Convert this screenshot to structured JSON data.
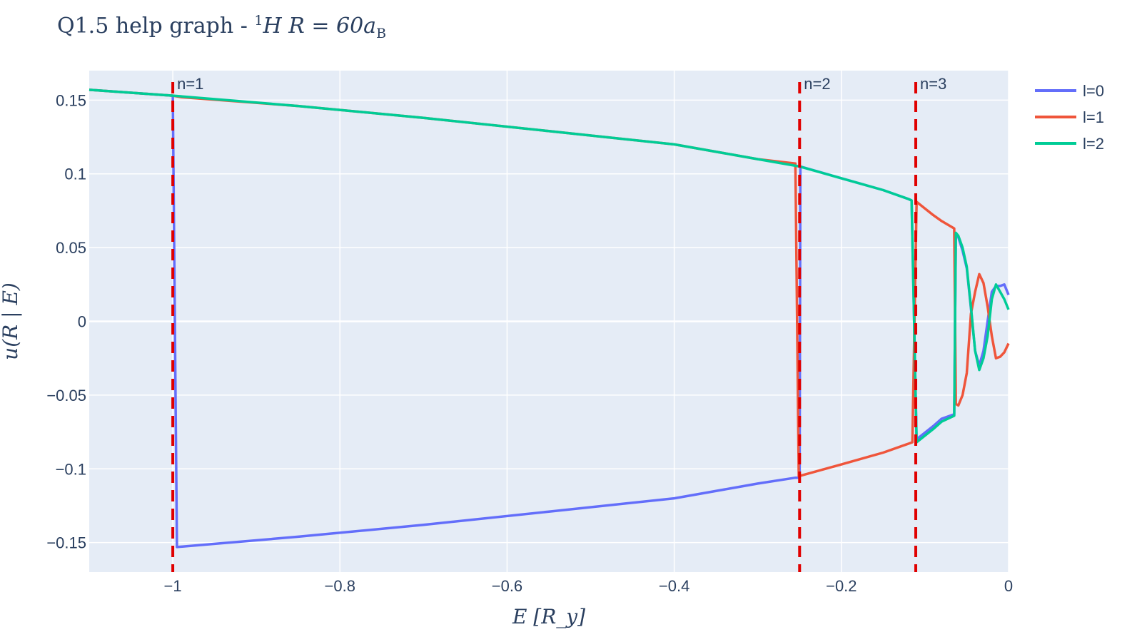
{
  "chart_data": {
    "type": "line",
    "title": {
      "prefix": "Q1.5 help graph - ",
      "sup": "1",
      "formula": "H R = 60a",
      "sub": "B"
    },
    "xlabel": "E [R_y]",
    "ylabel": "u(R | E)",
    "xlim": [
      -1.1,
      0.0
    ],
    "ylim": [
      -0.17,
      0.17
    ],
    "xticks": [
      {
        "value": -1.0,
        "label": "−1"
      },
      {
        "value": -0.8,
        "label": "−0.8"
      },
      {
        "value": -0.6,
        "label": "−0.6"
      },
      {
        "value": -0.4,
        "label": "−0.4"
      },
      {
        "value": -0.2,
        "label": "−0.2"
      },
      {
        "value": 0.0,
        "label": "0"
      }
    ],
    "yticks": [
      {
        "value": 0.15,
        "label": "0.15"
      },
      {
        "value": 0.1,
        "label": "0.1"
      },
      {
        "value": 0.05,
        "label": "0.05"
      },
      {
        "value": 0.0,
        "label": "0"
      },
      {
        "value": -0.05,
        "label": "−0.05"
      },
      {
        "value": -0.1,
        "label": "−0.1"
      },
      {
        "value": -0.15,
        "label": "−0.15"
      }
    ],
    "grid": true,
    "legend_position": "top-right outside",
    "series": [
      {
        "name": "l=0",
        "color": "#636efa",
        "x": [
          -1.1,
          -1.0,
          -0.995,
          -0.85,
          -0.7,
          -0.55,
          -0.4,
          -0.33,
          -0.3,
          -0.255,
          -0.25,
          -0.249,
          -0.2,
          -0.15,
          -0.12,
          -0.116,
          -0.11,
          -0.09,
          -0.08,
          -0.065,
          -0.063,
          -0.06,
          -0.055,
          -0.05,
          -0.045,
          -0.04,
          -0.035,
          -0.03,
          -0.025,
          -0.02,
          -0.015,
          -0.01,
          -0.005,
          0.0
        ],
        "y": [
          0.157,
          0.153,
          -0.153,
          -0.146,
          -0.138,
          -0.129,
          -0.12,
          -0.113,
          -0.11,
          -0.106,
          -0.106,
          0.105,
          0.097,
          0.089,
          0.083,
          0.082,
          -0.08,
          -0.071,
          -0.066,
          -0.063,
          0.058,
          0.057,
          0.048,
          0.036,
          0.009,
          -0.02,
          -0.03,
          -0.02,
          0.0,
          0.02,
          0.024,
          0.024,
          0.025,
          0.018
        ]
      },
      {
        "name": "l=1",
        "color": "#ef553b",
        "x": [
          -1.1,
          -1.0,
          -0.99,
          -0.85,
          -0.7,
          -0.55,
          -0.4,
          -0.33,
          -0.3,
          -0.255,
          -0.251,
          -0.2,
          -0.15,
          -0.12,
          -0.115,
          -0.11,
          -0.09,
          -0.08,
          -0.065,
          -0.063,
          -0.06,
          -0.055,
          -0.05,
          -0.045,
          -0.04,
          -0.035,
          -0.03,
          -0.025,
          -0.02,
          -0.015,
          -0.01,
          -0.005,
          0.0
        ],
        "y": [
          0.157,
          0.153,
          0.152,
          0.146,
          0.138,
          0.129,
          0.12,
          0.113,
          0.11,
          0.107,
          -0.105,
          -0.097,
          -0.089,
          -0.083,
          -0.082,
          0.081,
          0.072,
          0.068,
          0.063,
          -0.056,
          -0.057,
          -0.05,
          -0.035,
          0.005,
          0.02,
          0.032,
          0.026,
          0.01,
          -0.01,
          -0.025,
          -0.024,
          -0.021,
          -0.015
        ]
      },
      {
        "name": "l=2",
        "color": "#00cc96",
        "x": [
          -1.1,
          -1.0,
          -0.85,
          -0.7,
          -0.55,
          -0.4,
          -0.33,
          -0.3,
          -0.25,
          -0.2,
          -0.15,
          -0.12,
          -0.116,
          -0.11,
          -0.09,
          -0.08,
          -0.065,
          -0.063,
          -0.06,
          -0.055,
          -0.05,
          -0.045,
          -0.04,
          -0.035,
          -0.03,
          -0.025,
          -0.02,
          -0.015,
          -0.01,
          -0.005,
          0.0
        ],
        "y": [
          0.157,
          0.153,
          0.146,
          0.138,
          0.129,
          0.12,
          0.113,
          0.11,
          0.105,
          0.097,
          0.089,
          0.083,
          0.082,
          -0.082,
          -0.073,
          -0.068,
          -0.064,
          0.06,
          0.058,
          0.05,
          0.037,
          0.01,
          -0.02,
          -0.033,
          -0.025,
          -0.01,
          0.015,
          0.025,
          0.02,
          0.015,
          0.008
        ]
      }
    ],
    "vlines": [
      {
        "x": -1.0,
        "label": "n=1",
        "color": "#e00000"
      },
      {
        "x": -0.25,
        "label": "n=2",
        "color": "#e00000"
      },
      {
        "x": -0.111,
        "label": "n=3",
        "color": "#e00000"
      }
    ],
    "colors": {
      "plot_background": "#e5ecf6",
      "grid": "#ffffff",
      "text": "#2a3f5f"
    }
  }
}
